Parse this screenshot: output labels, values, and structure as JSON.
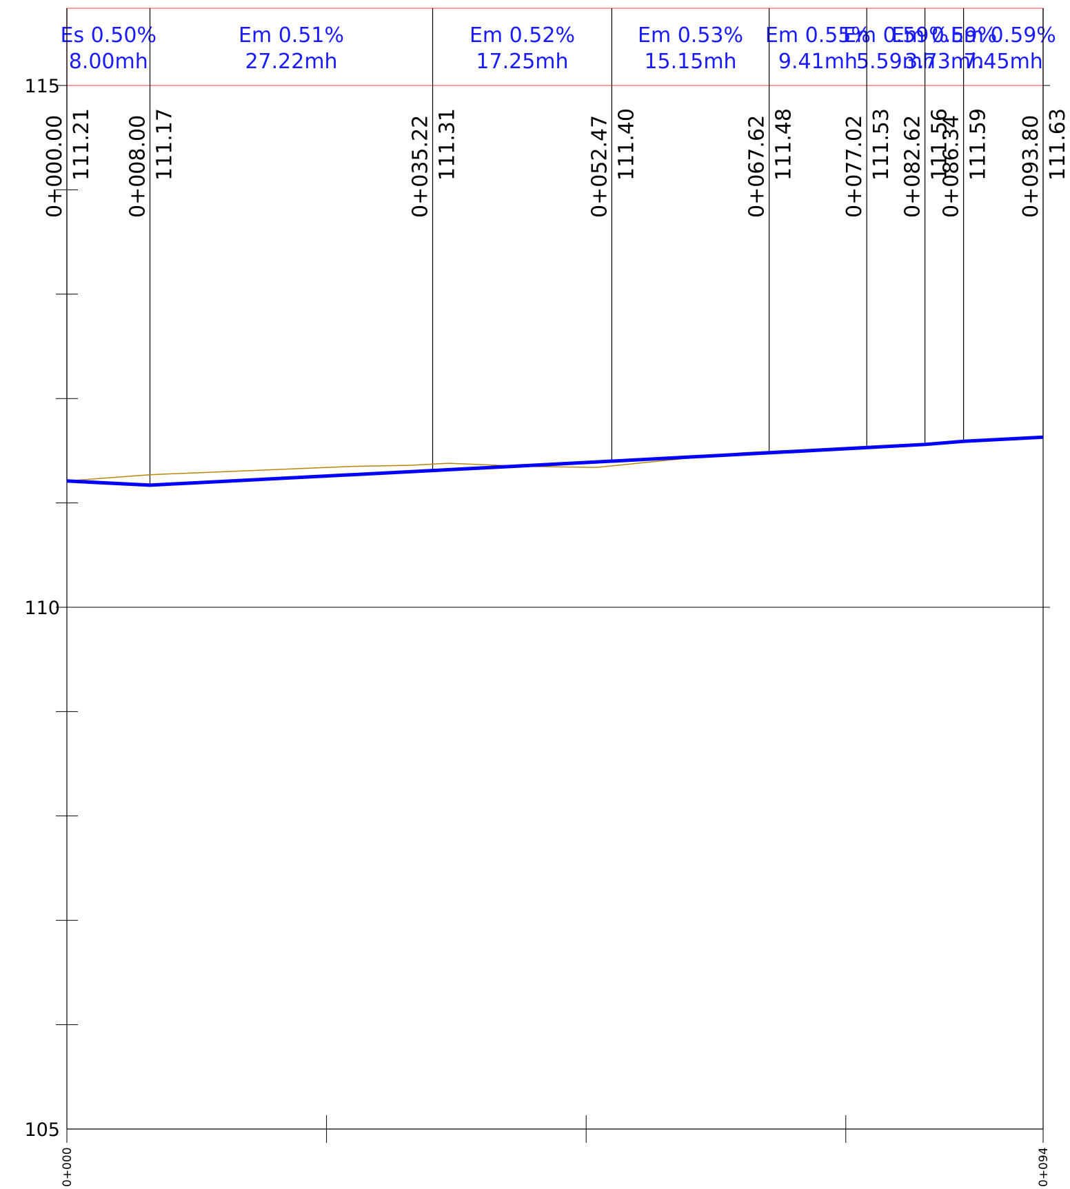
{
  "axes": {
    "y_labels": [
      "115",
      "110",
      "105"
    ],
    "x_start_label": "0+000",
    "x_end_label": "0+094"
  },
  "pipe_segments": [
    {
      "slope": "Es  0.50%",
      "length": "8.00mh"
    },
    {
      "slope": "Em  0.51%",
      "length": "27.22mh"
    },
    {
      "slope": "Em  0.52%",
      "length": "17.25mh"
    },
    {
      "slope": "Em  0.53%",
      "length": "15.15mh"
    },
    {
      "slope": "Em  0.55%",
      "length": "9.41mh"
    },
    {
      "slope": "Em  0.59%",
      "length": "5.59mh"
    },
    {
      "slope": "Em  0.59%",
      "length": "3.73mh"
    },
    {
      "slope": "Em  0.59%",
      "length": "7.45mh"
    }
  ],
  "manholes": [
    {
      "station": "0+000.00",
      "elevation": "111.21"
    },
    {
      "station": "0+008.00",
      "elevation": "111.17"
    },
    {
      "station": "0+035.22",
      "elevation": "111.31"
    },
    {
      "station": "0+052.47",
      "elevation": "111.40"
    },
    {
      "station": "0+067.62",
      "elevation": "111.48"
    },
    {
      "station": "0+077.02",
      "elevation": "111.53"
    },
    {
      "station": "0+082.62",
      "elevation": "111.56"
    },
    {
      "station": "0+086.34",
      "elevation": "111.59"
    },
    {
      "station": "0+093.80",
      "elevation": "111.63"
    }
  ],
  "chart_data": {
    "type": "line",
    "ylim": [
      105,
      115
    ],
    "xlim": [
      0,
      94
    ],
    "series": [
      {
        "role": "pipe invert",
        "color": "#0000ff",
        "x": [
          0.0,
          8.0,
          35.22,
          52.47,
          67.62,
          77.02,
          82.62,
          86.34,
          93.8
        ],
        "y": [
          111.21,
          111.17,
          111.31,
          111.4,
          111.48,
          111.53,
          111.56,
          111.59,
          111.63
        ]
      },
      {
        "role": "ground",
        "color": "#b8860b",
        "x": [
          0.0,
          8.0,
          27.5,
          33.0,
          36.8,
          44.0,
          51.0,
          57.0,
          65.0,
          93.8
        ],
        "y": [
          111.21,
          111.27,
          111.35,
          111.36,
          111.38,
          111.35,
          111.34,
          111.4,
          111.48,
          111.63
        ]
      }
    ]
  }
}
